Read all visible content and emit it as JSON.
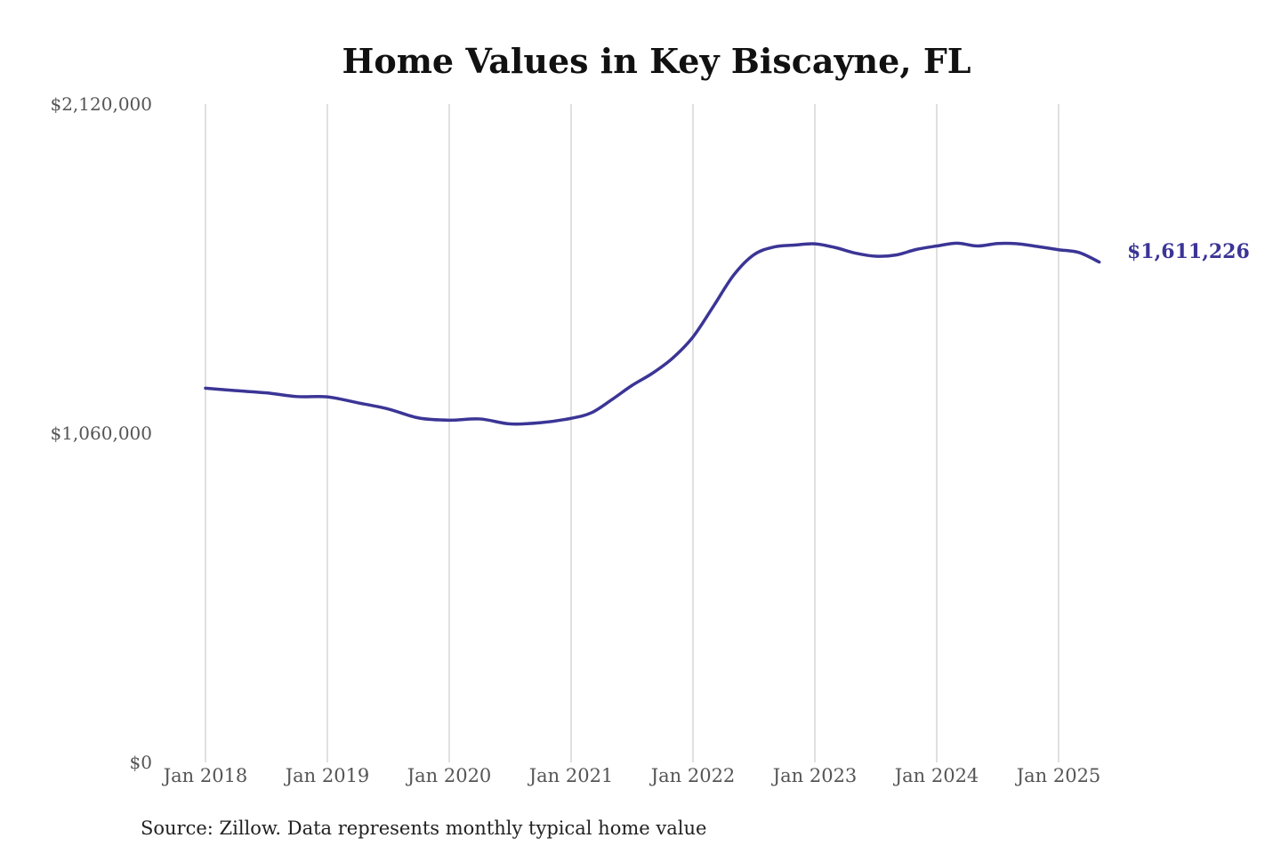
{
  "chart_data": {
    "type": "line",
    "title": "Home Values in Key Biscayne, FL",
    "source": "Source: Zillow. Data represents monthly typical home value",
    "line_color": "#3b3596",
    "ylim": [
      0,
      2120000
    ],
    "y_ticks": [
      {
        "value": 0,
        "label": "$0"
      },
      {
        "value": 1060000,
        "label": "$1,060,000"
      },
      {
        "value": 2120000,
        "label": "$2,120,000"
      }
    ],
    "x_ticks": [
      {
        "value": "2018-01",
        "label": "Jan 2018"
      },
      {
        "value": "2019-01",
        "label": "Jan 2019"
      },
      {
        "value": "2020-01",
        "label": "Jan 2020"
      },
      {
        "value": "2021-01",
        "label": "Jan 2021"
      },
      {
        "value": "2022-01",
        "label": "Jan 2022"
      },
      {
        "value": "2023-01",
        "label": "Jan 2023"
      },
      {
        "value": "2024-01",
        "label": "Jan 2024"
      },
      {
        "value": "2025-01",
        "label": "Jan 2025"
      }
    ],
    "grid": "vertical",
    "end_label": "$1,611,226",
    "series": [
      {
        "values": [
          [
            "2018-01",
            1205000
          ],
          [
            "2018-04",
            1197000
          ],
          [
            "2018-07",
            1190000
          ],
          [
            "2018-10",
            1178000
          ],
          [
            "2019-01",
            1177000
          ],
          [
            "2019-04",
            1158000
          ],
          [
            "2019-07",
            1138000
          ],
          [
            "2019-10",
            1109000
          ],
          [
            "2020-01",
            1102000
          ],
          [
            "2020-04",
            1106000
          ],
          [
            "2020-07",
            1090000
          ],
          [
            "2020-10",
            1094000
          ],
          [
            "2021-01",
            1108000
          ],
          [
            "2021-03",
            1126000
          ],
          [
            "2021-05",
            1168000
          ],
          [
            "2021-07",
            1214000
          ],
          [
            "2021-09",
            1253000
          ],
          [
            "2021-11",
            1302000
          ],
          [
            "2022-01",
            1370000
          ],
          [
            "2022-03",
            1468000
          ],
          [
            "2022-05",
            1569000
          ],
          [
            "2022-07",
            1635000
          ],
          [
            "2022-09",
            1660000
          ],
          [
            "2022-11",
            1666000
          ],
          [
            "2023-01",
            1670000
          ],
          [
            "2023-03",
            1658000
          ],
          [
            "2023-05",
            1640000
          ],
          [
            "2023-07",
            1630000
          ],
          [
            "2023-09",
            1634000
          ],
          [
            "2023-11",
            1652000
          ],
          [
            "2024-01",
            1663000
          ],
          [
            "2024-03",
            1672000
          ],
          [
            "2024-05",
            1663000
          ],
          [
            "2024-07",
            1671000
          ],
          [
            "2024-09",
            1670000
          ],
          [
            "2024-11",
            1661000
          ],
          [
            "2025-01",
            1651000
          ],
          [
            "2025-03",
            1642000
          ],
          [
            "2025-05",
            1611226
          ]
        ]
      }
    ]
  }
}
